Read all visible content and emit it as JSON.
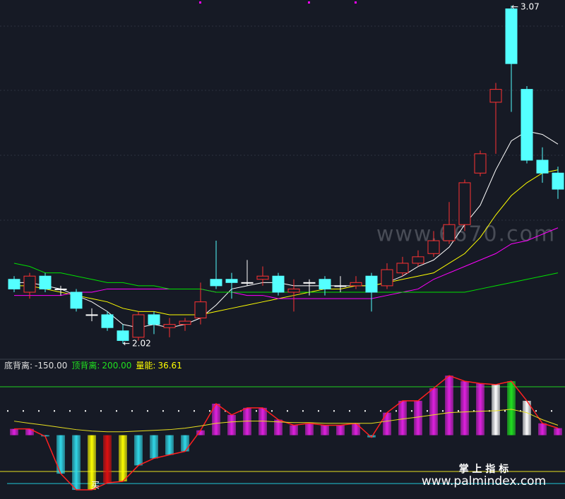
{
  "chart_data": [
    {
      "type": "candlestick",
      "open": [
        2.22,
        2.18,
        2.23,
        2.19,
        2.18,
        2.11,
        2.11,
        2.06,
        2.04,
        2.11,
        2.07,
        2.08,
        2.1,
        2.22,
        2.22,
        2.21,
        2.22,
        2.23,
        2.18,
        2.21,
        2.22,
        2.2,
        2.2,
        2.23,
        2.2,
        2.24,
        2.27,
        2.3,
        2.34,
        2.39,
        2.55,
        2.77,
        3.06,
        2.81,
        2.59,
        2.55
      ],
      "close": [
        2.19,
        2.23,
        2.19,
        2.19,
        2.13,
        2.11,
        2.07,
        2.03,
        2.11,
        2.08,
        2.08,
        2.09,
        2.15,
        2.2,
        2.21,
        2.21,
        2.23,
        2.18,
        2.19,
        2.21,
        2.19,
        2.2,
        2.21,
        2.18,
        2.25,
        2.27,
        2.29,
        2.34,
        2.39,
        2.52,
        2.61,
        2.81,
        2.89,
        2.59,
        2.55,
        2.5
      ],
      "high": [
        2.23,
        2.24,
        2.24,
        2.2,
        2.19,
        2.13,
        2.12,
        2.08,
        2.12,
        2.12,
        2.1,
        2.1,
        2.21,
        2.34,
        2.24,
        2.28,
        2.26,
        2.24,
        2.22,
        2.22,
        2.23,
        2.23,
        2.23,
        2.24,
        2.27,
        2.29,
        2.31,
        2.37,
        2.46,
        2.53,
        2.62,
        2.83,
        3.07,
        2.82,
        2.63,
        2.57
      ],
      "low": [
        2.18,
        2.16,
        2.18,
        2.17,
        2.12,
        2.09,
        2.06,
        2.02,
        2.03,
        2.05,
        2.04,
        2.06,
        2.08,
        2.19,
        2.16,
        2.2,
        2.2,
        2.17,
        2.12,
        2.17,
        2.17,
        2.18,
        2.19,
        2.12,
        2.19,
        2.23,
        2.26,
        2.29,
        2.33,
        2.37,
        2.54,
        2.61,
        2.74,
        2.58,
        2.52,
        2.47
      ],
      "up_color": "#ff3232",
      "down_color": "#54ffff",
      "flat_color": "#ffffff",
      "series": [
        {
          "color": "#ffffff",
          "values": [
            2.21,
            2.21,
            2.2,
            2.19,
            2.17,
            2.15,
            2.12,
            2.08,
            2.07,
            2.08,
            2.07,
            2.08,
            2.1,
            2.14,
            2.19,
            2.2,
            2.21,
            2.21,
            2.2,
            2.2,
            2.2,
            2.2,
            2.2,
            2.2,
            2.21,
            2.23,
            2.26,
            2.28,
            2.32,
            2.39,
            2.45,
            2.56,
            2.65,
            2.68,
            2.67,
            2.64
          ]
        },
        {
          "color": "#ffff00",
          "values": [
            2.2,
            2.2,
            2.19,
            2.18,
            2.17,
            2.16,
            2.15,
            2.13,
            2.12,
            2.12,
            2.11,
            2.11,
            2.11,
            2.12,
            2.13,
            2.14,
            2.15,
            2.16,
            2.17,
            2.18,
            2.19,
            2.19,
            2.2,
            2.2,
            2.21,
            2.22,
            2.23,
            2.24,
            2.27,
            2.3,
            2.35,
            2.42,
            2.48,
            2.52,
            2.55,
            2.56
          ]
        },
        {
          "color": "#ff00ff",
          "values": [
            2.17,
            2.17,
            2.17,
            2.17,
            2.18,
            2.18,
            2.19,
            2.19,
            2.19,
            2.19,
            2.19,
            2.19,
            2.19,
            2.18,
            2.18,
            2.17,
            2.17,
            2.16,
            2.16,
            2.16,
            2.16,
            2.16,
            2.16,
            2.16,
            2.17,
            2.18,
            2.19,
            2.22,
            2.24,
            2.26,
            2.28,
            2.3,
            2.33,
            2.34,
            2.36,
            2.38
          ]
        },
        {
          "color": "#00e000",
          "values": [
            2.27,
            2.26,
            2.24,
            2.24,
            2.23,
            2.22,
            2.21,
            2.21,
            2.2,
            2.2,
            2.19,
            2.19,
            2.19,
            2.18,
            2.18,
            2.18,
            2.18,
            2.18,
            2.18,
            2.18,
            2.18,
            2.18,
            2.18,
            2.18,
            2.18,
            2.18,
            2.18,
            2.18,
            2.18,
            2.18,
            2.19,
            2.2,
            2.21,
            2.22,
            2.23,
            2.24
          ]
        }
      ],
      "watermark": "www.6670.com"
    },
    {
      "type": "bar",
      "values": [
        26,
        26,
        -5,
        -159,
        -226,
        -226,
        -197,
        -191,
        -125,
        -96,
        -81,
        -67,
        20,
        130,
        84,
        113,
        113,
        64,
        41,
        49,
        41,
        41,
        49,
        -9,
        93,
        142,
        142,
        194,
        246,
        223,
        214,
        209,
        223,
        142,
        49,
        29
      ],
      "colors": [
        "#e020e0",
        "#e020e0",
        "#30d8e8",
        "#30d8e8",
        "#30d8e8",
        "#ffff00",
        "#e01010",
        "#ffff00",
        "#30d8e8",
        "#30d8e8",
        "#30d8e8",
        "#30d8e8",
        "#e020e0",
        "#e020e0",
        "#e020e0",
        "#e020e0",
        "#e020e0",
        "#e020e0",
        "#e020e0",
        "#e020e0",
        "#e020e0",
        "#e020e0",
        "#e020e0",
        "#30d8e8",
        "#e020e0",
        "#e020e0",
        "#e020e0",
        "#e020e0",
        "#e020e0",
        "#e020e0",
        "#e020e0",
        "#ffffff",
        "#20e020",
        "#ffffff",
        "#e020e0",
        "#e020e0"
      ],
      "line_color": "#ff2020",
      "signal": {
        "color": "#e8e020",
        "values": [
          58,
          49,
          41,
          32,
          23,
          17,
          14,
          14,
          17,
          20,
          23,
          29,
          38,
          49,
          55,
          58,
          58,
          55,
          52,
          52,
          49,
          49,
          49,
          49,
          58,
          67,
          75,
          84,
          93,
          96,
          99,
          101,
          107,
          93,
          64,
          41
        ]
      },
      "legend": [
        {
          "label": "底背离:",
          "value": -150,
          "value_label": "-150.00",
          "color": "#e0e0e0",
          "line_color": "#e8e020"
        },
        {
          "label": "顶背离:",
          "value": 200,
          "value_label": "200.00",
          "color": "#20e020",
          "line_color": "#20d020"
        },
        {
          "label": "量能:",
          "value": 36.61,
          "color": "#ffff00"
        }
      ],
      "guides": [
        {
          "value": 100,
          "color": "#ffffff",
          "dotted": true
        },
        {
          "value": -200,
          "color": "#20c8d8"
        }
      ],
      "annotation": "买"
    }
  ],
  "footer": {
    "title": "掌 上 指 标",
    "url": "www.palmindex.com"
  }
}
